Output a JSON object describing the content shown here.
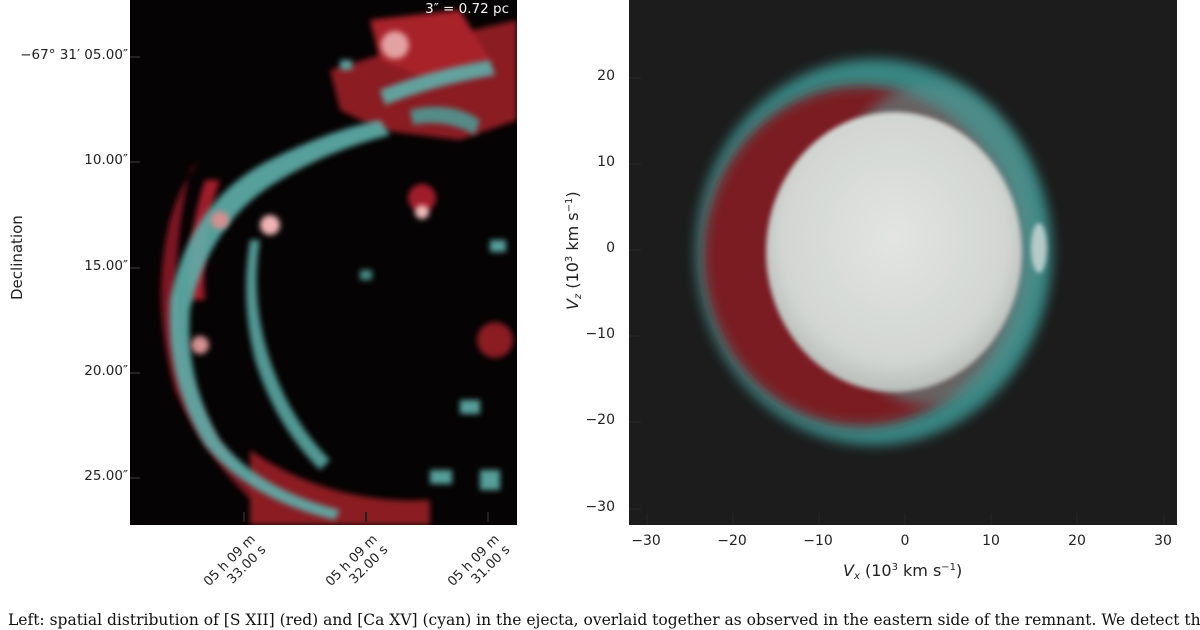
{
  "left_panel": {
    "ylabel": "Declination",
    "scale_bar_label": "3″ = 0.72 pc",
    "yticks": [
      "−67° 31′ 05.00″",
      "10.00″",
      "15.00″",
      "20.00″",
      "25.00″"
    ],
    "xticks": [
      {
        "line1": "05 h 09 m",
        "line2": "33.00 s"
      },
      {
        "line1": "05 h 09 m",
        "line2": "32.00 s"
      },
      {
        "line1": "05 h 09 m",
        "line2": "31.00 s"
      }
    ],
    "colors": {
      "red_channel": "#a8202c",
      "cyan_channel": "#5fb0ab",
      "background": "#050303"
    }
  },
  "right_panel": {
    "xlabel_main": "V",
    "xlabel_sub": "x",
    "xlabel_rest": " (10",
    "xlabel_sup": "3",
    "xlabel_units": " km s",
    "xlabel_sup2": "−1",
    "xlabel_close": ")",
    "ylabel_main": "V",
    "ylabel_sub": "z",
    "ylabel_rest": " (10",
    "ylabel_sup": "3",
    "ylabel_units": " km s",
    "ylabel_sup2": "−1",
    "ylabel_close": ")",
    "xticks": [
      "−30",
      "−20",
      "−10",
      "0",
      "10",
      "20",
      "30"
    ],
    "yticks": [
      "20",
      "10",
      "0",
      "−10",
      "−20",
      "−30"
    ],
    "colors": {
      "background": "#1c1c1c",
      "core": "#d6dad6",
      "red_shell": "#7a1c22",
      "cyan_shell": "#3e9a96"
    }
  },
  "caption": "Left: spatial distribution of [S XII] (red) and [Ca XV] (cyan) in the ejecta, overlaid together as observed in the eastern side of the remnant. We detect the"
}
